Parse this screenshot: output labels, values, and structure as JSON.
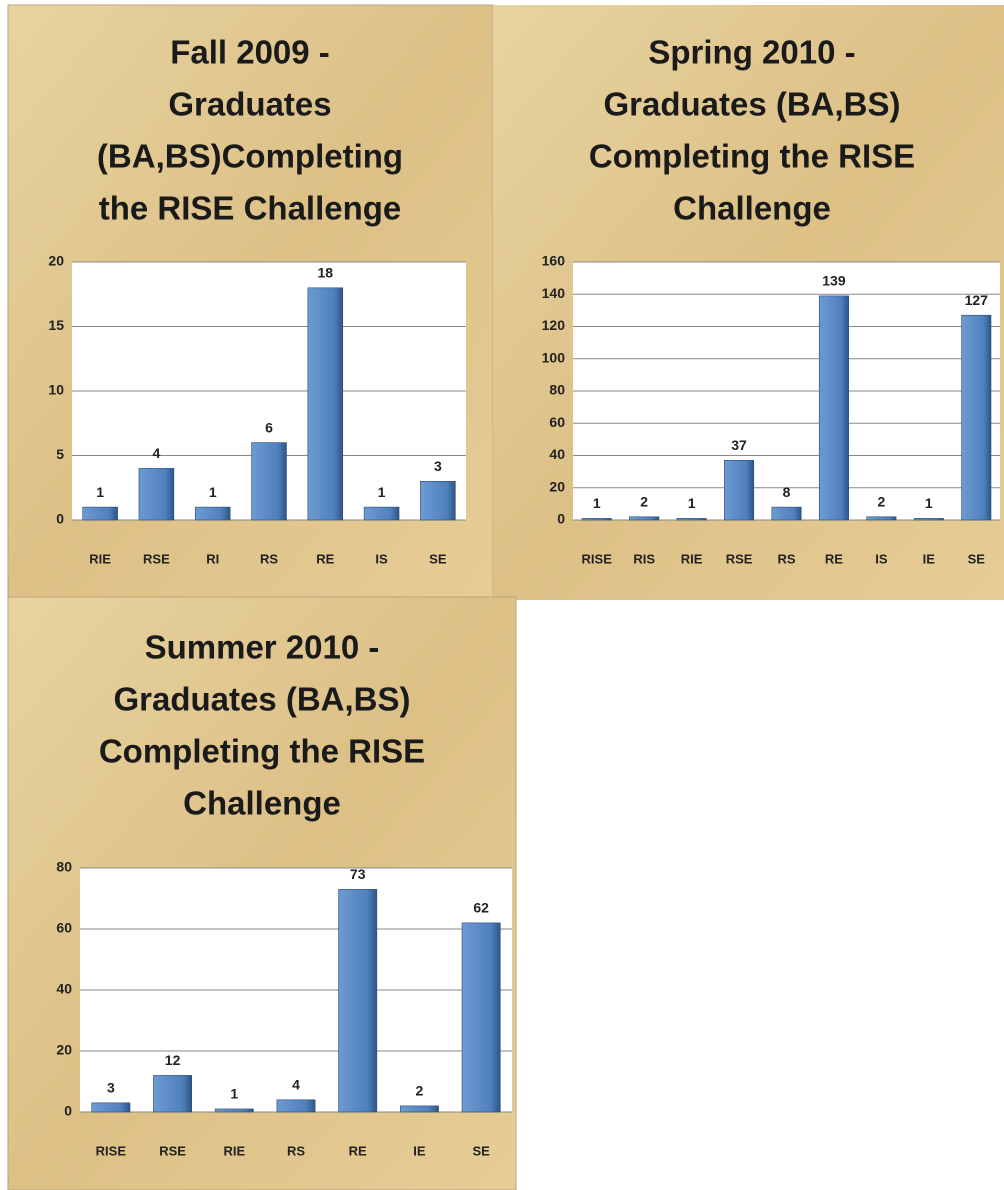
{
  "chart_data": [
    {
      "type": "bar",
      "title": [
        "Fall 2009 -",
        "Graduates",
        "(BA,BS)Completing",
        "the RISE Challenge"
      ],
      "categories": [
        "RIE",
        "RSE",
        "RI",
        "RS",
        "RE",
        "IS",
        "SE"
      ],
      "values": [
        1,
        4,
        1,
        6,
        18,
        1,
        3
      ],
      "color": "#4f81bd",
      "ylim": [
        0,
        20
      ],
      "yticks": [
        0,
        5,
        10,
        15,
        20
      ],
      "grid": true
    },
    {
      "type": "bar",
      "title": [
        "Spring 2010 -",
        "Graduates (BA,BS)",
        "Completing the RISE",
        "Challenge"
      ],
      "categories": [
        "RISE",
        "RIS",
        "RIE",
        "RSE",
        "RS",
        "RE",
        "IS",
        "IE",
        "SE"
      ],
      "values": [
        1,
        2,
        1,
        37,
        8,
        139,
        2,
        1,
        127
      ],
      "color": "#4f81bd",
      "ylim": [
        0,
        160
      ],
      "yticks": [
        0,
        20,
        40,
        60,
        80,
        100,
        120,
        140,
        160
      ],
      "grid": true
    },
    {
      "type": "bar",
      "title": [
        "Summer 2010 -",
        "Graduates (BA,BS)",
        "Completing the RISE",
        "Challenge"
      ],
      "categories": [
        "RISE",
        "RSE",
        "RIE",
        "RS",
        "RE",
        "IE",
        "SE"
      ],
      "values": [
        3,
        12,
        1,
        4,
        73,
        2,
        62
      ],
      "color": "#4f81bd",
      "ylim": [
        0,
        80
      ],
      "yticks": [
        0,
        20,
        40,
        60,
        80
      ],
      "grid": true
    }
  ]
}
